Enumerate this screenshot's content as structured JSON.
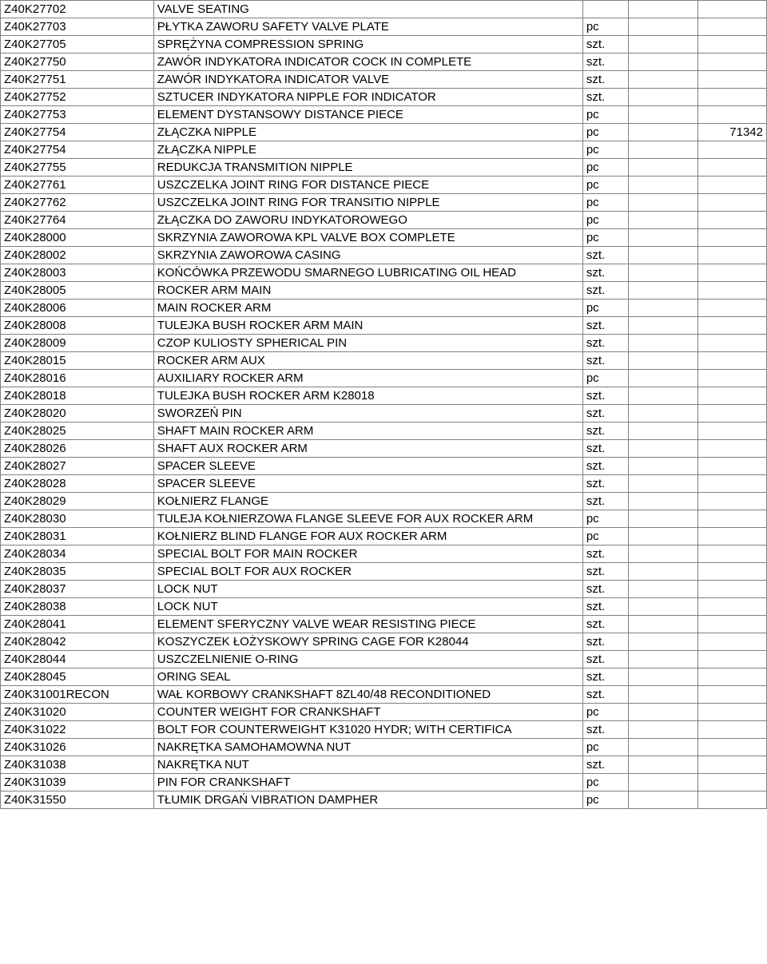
{
  "table": {
    "rows": [
      {
        "code": "Z40K27702",
        "desc": "VALVE SEATING",
        "unit": "",
        "extra": "",
        "num": ""
      },
      {
        "code": "Z40K27703",
        "desc": "PŁYTKA ZAWORU SAFETY VALVE PLATE",
        "unit": "pc",
        "extra": "",
        "num": ""
      },
      {
        "code": "Z40K27705",
        "desc": "SPRĘŻYNA COMPRESSION SPRING",
        "unit": "szt.",
        "extra": "",
        "num": ""
      },
      {
        "code": "Z40K27750",
        "desc": "ZAWÓR INDYKATORA INDICATOR COCK IN COMPLETE",
        "unit": "szt.",
        "extra": "",
        "num": ""
      },
      {
        "code": "Z40K27751",
        "desc": "ZAWÓR INDYKATORA INDICATOR VALVE",
        "unit": "szt.",
        "extra": "",
        "num": ""
      },
      {
        "code": "Z40K27752",
        "desc": "SZTUCER INDYKATORA NIPPLE FOR INDICATOR",
        "unit": "szt.",
        "extra": "",
        "num": ""
      },
      {
        "code": "Z40K27753",
        "desc": "ELEMENT DYSTANSOWY DISTANCE PIECE",
        "unit": "pc",
        "extra": "",
        "num": ""
      },
      {
        "code": "Z40K27754",
        "desc": "ZŁĄCZKA NIPPLE",
        "unit": "pc",
        "extra": "",
        "num": "71342"
      },
      {
        "code": "Z40K27754",
        "desc": "ZŁĄCZKA NIPPLE",
        "unit": "pc",
        "extra": "",
        "num": ""
      },
      {
        "code": "Z40K27755",
        "desc": "REDUKCJA TRANSMITION NIPPLE",
        "unit": "pc",
        "extra": "",
        "num": ""
      },
      {
        "code": "Z40K27761",
        "desc": "USZCZELKA JOINT RING FOR DISTANCE PIECE",
        "unit": "pc",
        "extra": "",
        "num": ""
      },
      {
        "code": "Z40K27762",
        "desc": "USZCZELKA JOINT RING FOR TRANSITIO NIPPLE",
        "unit": "pc",
        "extra": "",
        "num": ""
      },
      {
        "code": "Z40K27764",
        "desc": "ZŁĄCZKA DO ZAWORU INDYKATOROWEGO",
        "unit": "pc",
        "extra": "",
        "num": ""
      },
      {
        "code": "Z40K28000",
        "desc": "SKRZYNIA ZAWOROWA KPL VALVE BOX COMPLETE",
        "unit": "pc",
        "extra": "",
        "num": ""
      },
      {
        "code": "Z40K28002",
        "desc": "SKRZYNIA ZAWOROWA  CASING",
        "unit": "szt.",
        "extra": "",
        "num": ""
      },
      {
        "code": "Z40K28003",
        "desc": "KOŃCÓWKA PRZEWODU SMARNEGO LUBRICATING OIL HEAD",
        "unit": "szt.",
        "extra": "",
        "num": ""
      },
      {
        "code": "Z40K28005",
        "desc": "ROCKER ARM MAIN",
        "unit": "szt.",
        "extra": "",
        "num": ""
      },
      {
        "code": "Z40K28006",
        "desc": "MAIN ROCKER ARM",
        "unit": "pc",
        "extra": "",
        "num": ""
      },
      {
        "code": "Z40K28008",
        "desc": "TULEJKA BUSH ROCKER ARM MAIN",
        "unit": "szt.",
        "extra": "",
        "num": ""
      },
      {
        "code": "Z40K28009",
        "desc": "CZOP KULIOSTY SPHERICAL PIN",
        "unit": "szt.",
        "extra": "",
        "num": ""
      },
      {
        "code": "Z40K28015",
        "desc": "ROCKER ARM AUX",
        "unit": "szt.",
        "extra": "",
        "num": ""
      },
      {
        "code": "Z40K28016",
        "desc": "AUXILIARY ROCKER ARM",
        "unit": "pc",
        "extra": "",
        "num": ""
      },
      {
        "code": "Z40K28018",
        "desc": "TULEJKA BUSH ROCKER ARM K28018",
        "unit": "szt.",
        "extra": "",
        "num": ""
      },
      {
        "code": "Z40K28020",
        "desc": "SWORZEŃ PIN",
        "unit": "szt.",
        "extra": "",
        "num": ""
      },
      {
        "code": "Z40K28025",
        "desc": "SHAFT MAIN ROCKER ARM",
        "unit": "szt.",
        "extra": "",
        "num": ""
      },
      {
        "code": "Z40K28026",
        "desc": "SHAFT AUX ROCKER ARM",
        "unit": "szt.",
        "extra": "",
        "num": ""
      },
      {
        "code": "Z40K28027",
        "desc": "SPACER SLEEVE",
        "unit": "szt.",
        "extra": "",
        "num": ""
      },
      {
        "code": "Z40K28028",
        "desc": "SPACER SLEEVE",
        "unit": "szt.",
        "extra": "",
        "num": ""
      },
      {
        "code": "Z40K28029",
        "desc": "KOŁNIERZ FLANGE",
        "unit": "szt.",
        "extra": "",
        "num": ""
      },
      {
        "code": "Z40K28030",
        "desc": "TULEJA KOŁNIERZOWA FLANGE SLEEVE FOR AUX ROCKER ARM",
        "unit": "pc",
        "extra": "",
        "num": ""
      },
      {
        "code": "Z40K28031",
        "desc": "KOŁNIERZ BLIND FLANGE FOR AUX ROCKER ARM",
        "unit": "pc",
        "extra": "",
        "num": ""
      },
      {
        "code": "Z40K28034",
        "desc": "SPECIAL BOLT FOR MAIN ROCKER",
        "unit": "szt.",
        "extra": "",
        "num": ""
      },
      {
        "code": "Z40K28035",
        "desc": "SPECIAL BOLT FOR AUX  ROCKER",
        "unit": "szt.",
        "extra": "",
        "num": ""
      },
      {
        "code": "Z40K28037",
        "desc": "LOCK NUT",
        "unit": "szt.",
        "extra": "",
        "num": ""
      },
      {
        "code": "Z40K28038",
        "desc": "LOCK NUT",
        "unit": "szt.",
        "extra": "",
        "num": ""
      },
      {
        "code": "Z40K28041",
        "desc": "ELEMENT SFERYCZNY VALVE WEAR RESISTING PIECE",
        "unit": "szt.",
        "extra": "",
        "num": ""
      },
      {
        "code": "Z40K28042",
        "desc": "KOSZYCZEK ŁOŻYSKOWY SPRING CAGE FOR K28044",
        "unit": "szt.",
        "extra": "",
        "num": ""
      },
      {
        "code": "Z40K28044",
        "desc": "USZCZELNIENIE O-RING",
        "unit": "szt.",
        "extra": "",
        "num": ""
      },
      {
        "code": "Z40K28045",
        "desc": "ORING SEAL",
        "unit": "szt.",
        "extra": "",
        "num": ""
      },
      {
        "code": "Z40K31001RECON",
        "desc": "WAŁ KORBOWY CRANKSHAFT 8ZL40/48 RECONDITIONED",
        "unit": "szt.",
        "extra": "",
        "num": ""
      },
      {
        "code": "Z40K31020",
        "desc": "COUNTER WEIGHT FOR CRANKSHAFT",
        "unit": "pc",
        "extra": "",
        "num": ""
      },
      {
        "code": "Z40K31022",
        "desc": "BOLT FOR COUNTERWEIGHT K31020 HYDR; WITH CERTIFICA",
        "unit": "szt.",
        "extra": "",
        "num": ""
      },
      {
        "code": "Z40K31026",
        "desc": "NAKRĘTKA SAMOHAMOWNA NUT",
        "unit": "pc",
        "extra": "",
        "num": ""
      },
      {
        "code": "Z40K31038",
        "desc": "NAKRĘTKA NUT",
        "unit": "szt.",
        "extra": "",
        "num": ""
      },
      {
        "code": "Z40K31039",
        "desc": "PIN FOR CRANKSHAFT",
        "unit": "pc",
        "extra": "",
        "num": ""
      },
      {
        "code": "Z40K31550",
        "desc": "TŁUMIK DRGAŃ VIBRATION DAMPHER",
        "unit": "pc",
        "extra": "",
        "num": ""
      }
    ]
  }
}
